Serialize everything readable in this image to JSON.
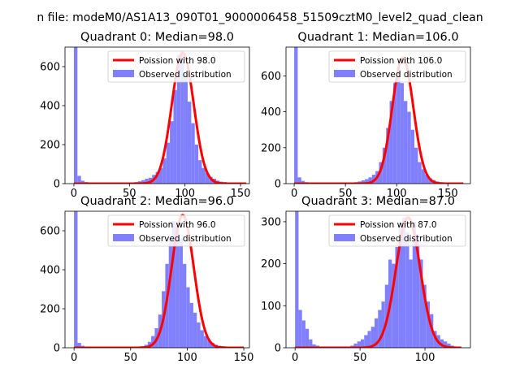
{
  "figure": {
    "suptitle": "n file: modeM0/AS1A13_090T01_9000006458_51509cztM0_level2_quad_clean"
  },
  "colors": {
    "histogram": "#8080ff",
    "poisson_line": "#ff0000",
    "axes": "#000000"
  },
  "chart_data": [
    {
      "type": "bar",
      "title": "Quadrant 0: Median=98.0",
      "xlim": [
        -8,
        158
      ],
      "ylim": [
        0,
        700
      ],
      "xticks": [
        0,
        50,
        100,
        150
      ],
      "yticks": [
        0,
        200,
        400,
        600
      ],
      "legend": {
        "placement": "upper-right",
        "line_label": "Poission with 98.0",
        "bar_label": "Observed distribution"
      },
      "poisson_mean": 98.0,
      "poisson_peak": 670,
      "poisson_range": [
        0,
        155
      ],
      "bin_start": 0,
      "bin_width": 3.2,
      "counts": [
        700,
        40,
        15,
        8,
        5,
        5,
        5,
        5,
        5,
        5,
        5,
        5,
        5,
        5,
        5,
        5,
        5,
        8,
        12,
        18,
        25,
        30,
        45,
        60,
        80,
        130,
        210,
        320,
        480,
        660,
        680,
        560,
        420,
        310,
        200,
        120,
        80,
        55,
        35,
        25,
        15,
        10,
        8,
        5,
        3,
        2,
        1,
        1
      ]
    },
    {
      "type": "bar",
      "title": "Quadrant 1: Median=106.0",
      "xlim": [
        -8,
        172
      ],
      "ylim": [
        0,
        760
      ],
      "xticks": [
        0,
        50,
        100,
        150
      ],
      "yticks": [
        0,
        200,
        400,
        600
      ],
      "legend": {
        "placement": "upper-right",
        "line_label": "Poission with 106.0",
        "bar_label": "Observed distribution"
      },
      "poisson_mean": 106.0,
      "poisson_peak": 700,
      "poisson_range": [
        0,
        165
      ],
      "bin_start": 0,
      "bin_width": 3.45,
      "counts": [
        760,
        35,
        15,
        8,
        5,
        5,
        5,
        5,
        5,
        5,
        5,
        5,
        5,
        5,
        5,
        5,
        5,
        8,
        12,
        18,
        25,
        35,
        50,
        70,
        120,
        200,
        310,
        460,
        560,
        640,
        560,
        460,
        400,
        300,
        200,
        120,
        80,
        50,
        30,
        20,
        12,
        8,
        5,
        3,
        2,
        1,
        1,
        1
      ]
    },
    {
      "type": "bar",
      "title": "Quadrant 2: Median=96.0",
      "xlim": [
        -8,
        155
      ],
      "ylim": [
        0,
        700
      ],
      "xticks": [
        0,
        50,
        100,
        150
      ],
      "yticks": [
        0,
        200,
        400,
        600
      ],
      "legend": {
        "placement": "upper-right",
        "line_label": "Poission with 96.0",
        "bar_label": "Observed distribution"
      },
      "poisson_mean": 96.0,
      "poisson_peak": 680,
      "poisson_range": [
        0,
        150
      ],
      "bin_start": 0,
      "bin_width": 3.1,
      "counts": [
        700,
        25,
        10,
        5,
        5,
        5,
        5,
        5,
        5,
        5,
        5,
        5,
        5,
        5,
        5,
        5,
        5,
        5,
        5,
        8,
        15,
        30,
        60,
        100,
        170,
        290,
        430,
        560,
        650,
        640,
        560,
        430,
        310,
        230,
        180,
        130,
        90,
        60,
        40,
        25,
        15,
        10,
        8,
        5,
        3,
        2,
        1,
        1
      ]
    },
    {
      "type": "bar",
      "title": "Quadrant 3: Median=87.0",
      "xlim": [
        -7,
        135
      ],
      "ylim": [
        0,
        325
      ],
      "xticks": [
        0,
        50,
        100
      ],
      "yticks": [
        0,
        100,
        200,
        300
      ],
      "legend": {
        "placement": "upper-right",
        "line_label": "Poission with 87.0",
        "bar_label": "Observed distribution"
      },
      "poisson_mean": 87.0,
      "poisson_peak": 310,
      "poisson_range": [
        0,
        128
      ],
      "bin_start": 0,
      "bin_width": 2.66,
      "counts": [
        325,
        90,
        65,
        45,
        20,
        8,
        5,
        3,
        3,
        3,
        3,
        3,
        3,
        3,
        3,
        3,
        5,
        10,
        15,
        20,
        30,
        40,
        50,
        70,
        90,
        110,
        150,
        210,
        200,
        240,
        290,
        310,
        275,
        210,
        300,
        270,
        210,
        150,
        110,
        80,
        40,
        30,
        20,
        15,
        10,
        5,
        3,
        2
      ]
    }
  ]
}
